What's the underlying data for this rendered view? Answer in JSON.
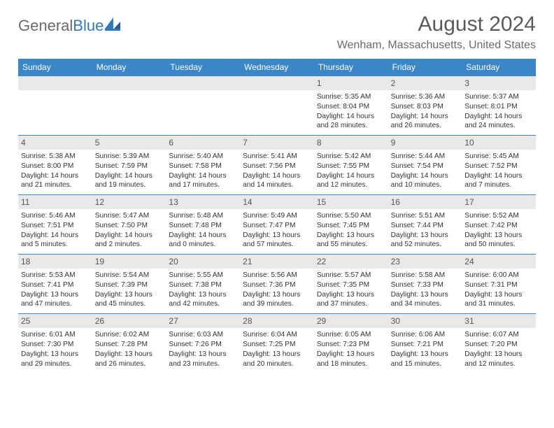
{
  "logo": {
    "part1": "General",
    "part2": "Blue"
  },
  "title": "August 2024",
  "location": "Wenham, Massachusetts, United States",
  "day_headers": [
    "Sunday",
    "Monday",
    "Tuesday",
    "Wednesday",
    "Thursday",
    "Friday",
    "Saturday"
  ],
  "colors": {
    "header_bg": "#3b86c6",
    "num_bg": "#e9e9e9",
    "rule": "#3b86c6",
    "logo_gray": "#6a6a6a",
    "logo_blue": "#2f7bbf"
  },
  "weeks": [
    [
      {
        "num": "",
        "empty": true,
        "sunrise": "",
        "sunset": "",
        "daylight1": "",
        "daylight2": ""
      },
      {
        "num": "",
        "empty": true,
        "sunrise": "",
        "sunset": "",
        "daylight1": "",
        "daylight2": ""
      },
      {
        "num": "",
        "empty": true,
        "sunrise": "",
        "sunset": "",
        "daylight1": "",
        "daylight2": ""
      },
      {
        "num": "",
        "empty": true,
        "sunrise": "",
        "sunset": "",
        "daylight1": "",
        "daylight2": ""
      },
      {
        "num": "1",
        "sunrise": "Sunrise: 5:35 AM",
        "sunset": "Sunset: 8:04 PM",
        "daylight1": "Daylight: 14 hours",
        "daylight2": "and 28 minutes."
      },
      {
        "num": "2",
        "sunrise": "Sunrise: 5:36 AM",
        "sunset": "Sunset: 8:03 PM",
        "daylight1": "Daylight: 14 hours",
        "daylight2": "and 26 minutes."
      },
      {
        "num": "3",
        "sunrise": "Sunrise: 5:37 AM",
        "sunset": "Sunset: 8:01 PM",
        "daylight1": "Daylight: 14 hours",
        "daylight2": "and 24 minutes."
      }
    ],
    [
      {
        "num": "4",
        "sunrise": "Sunrise: 5:38 AM",
        "sunset": "Sunset: 8:00 PM",
        "daylight1": "Daylight: 14 hours",
        "daylight2": "and 21 minutes."
      },
      {
        "num": "5",
        "sunrise": "Sunrise: 5:39 AM",
        "sunset": "Sunset: 7:59 PM",
        "daylight1": "Daylight: 14 hours",
        "daylight2": "and 19 minutes."
      },
      {
        "num": "6",
        "sunrise": "Sunrise: 5:40 AM",
        "sunset": "Sunset: 7:58 PM",
        "daylight1": "Daylight: 14 hours",
        "daylight2": "and 17 minutes."
      },
      {
        "num": "7",
        "sunrise": "Sunrise: 5:41 AM",
        "sunset": "Sunset: 7:56 PM",
        "daylight1": "Daylight: 14 hours",
        "daylight2": "and 14 minutes."
      },
      {
        "num": "8",
        "sunrise": "Sunrise: 5:42 AM",
        "sunset": "Sunset: 7:55 PM",
        "daylight1": "Daylight: 14 hours",
        "daylight2": "and 12 minutes."
      },
      {
        "num": "9",
        "sunrise": "Sunrise: 5:44 AM",
        "sunset": "Sunset: 7:54 PM",
        "daylight1": "Daylight: 14 hours",
        "daylight2": "and 10 minutes."
      },
      {
        "num": "10",
        "sunrise": "Sunrise: 5:45 AM",
        "sunset": "Sunset: 7:52 PM",
        "daylight1": "Daylight: 14 hours",
        "daylight2": "and 7 minutes."
      }
    ],
    [
      {
        "num": "11",
        "sunrise": "Sunrise: 5:46 AM",
        "sunset": "Sunset: 7:51 PM",
        "daylight1": "Daylight: 14 hours",
        "daylight2": "and 5 minutes."
      },
      {
        "num": "12",
        "sunrise": "Sunrise: 5:47 AM",
        "sunset": "Sunset: 7:50 PM",
        "daylight1": "Daylight: 14 hours",
        "daylight2": "and 2 minutes."
      },
      {
        "num": "13",
        "sunrise": "Sunrise: 5:48 AM",
        "sunset": "Sunset: 7:48 PM",
        "daylight1": "Daylight: 14 hours",
        "daylight2": "and 0 minutes."
      },
      {
        "num": "14",
        "sunrise": "Sunrise: 5:49 AM",
        "sunset": "Sunset: 7:47 PM",
        "daylight1": "Daylight: 13 hours",
        "daylight2": "and 57 minutes."
      },
      {
        "num": "15",
        "sunrise": "Sunrise: 5:50 AM",
        "sunset": "Sunset: 7:45 PM",
        "daylight1": "Daylight: 13 hours",
        "daylight2": "and 55 minutes."
      },
      {
        "num": "16",
        "sunrise": "Sunrise: 5:51 AM",
        "sunset": "Sunset: 7:44 PM",
        "daylight1": "Daylight: 13 hours",
        "daylight2": "and 52 minutes."
      },
      {
        "num": "17",
        "sunrise": "Sunrise: 5:52 AM",
        "sunset": "Sunset: 7:42 PM",
        "daylight1": "Daylight: 13 hours",
        "daylight2": "and 50 minutes."
      }
    ],
    [
      {
        "num": "18",
        "sunrise": "Sunrise: 5:53 AM",
        "sunset": "Sunset: 7:41 PM",
        "daylight1": "Daylight: 13 hours",
        "daylight2": "and 47 minutes."
      },
      {
        "num": "19",
        "sunrise": "Sunrise: 5:54 AM",
        "sunset": "Sunset: 7:39 PM",
        "daylight1": "Daylight: 13 hours",
        "daylight2": "and 45 minutes."
      },
      {
        "num": "20",
        "sunrise": "Sunrise: 5:55 AM",
        "sunset": "Sunset: 7:38 PM",
        "daylight1": "Daylight: 13 hours",
        "daylight2": "and 42 minutes."
      },
      {
        "num": "21",
        "sunrise": "Sunrise: 5:56 AM",
        "sunset": "Sunset: 7:36 PM",
        "daylight1": "Daylight: 13 hours",
        "daylight2": "and 39 minutes."
      },
      {
        "num": "22",
        "sunrise": "Sunrise: 5:57 AM",
        "sunset": "Sunset: 7:35 PM",
        "daylight1": "Daylight: 13 hours",
        "daylight2": "and 37 minutes."
      },
      {
        "num": "23",
        "sunrise": "Sunrise: 5:58 AM",
        "sunset": "Sunset: 7:33 PM",
        "daylight1": "Daylight: 13 hours",
        "daylight2": "and 34 minutes."
      },
      {
        "num": "24",
        "sunrise": "Sunrise: 6:00 AM",
        "sunset": "Sunset: 7:31 PM",
        "daylight1": "Daylight: 13 hours",
        "daylight2": "and 31 minutes."
      }
    ],
    [
      {
        "num": "25",
        "sunrise": "Sunrise: 6:01 AM",
        "sunset": "Sunset: 7:30 PM",
        "daylight1": "Daylight: 13 hours",
        "daylight2": "and 29 minutes."
      },
      {
        "num": "26",
        "sunrise": "Sunrise: 6:02 AM",
        "sunset": "Sunset: 7:28 PM",
        "daylight1": "Daylight: 13 hours",
        "daylight2": "and 26 minutes."
      },
      {
        "num": "27",
        "sunrise": "Sunrise: 6:03 AM",
        "sunset": "Sunset: 7:26 PM",
        "daylight1": "Daylight: 13 hours",
        "daylight2": "and 23 minutes."
      },
      {
        "num": "28",
        "sunrise": "Sunrise: 6:04 AM",
        "sunset": "Sunset: 7:25 PM",
        "daylight1": "Daylight: 13 hours",
        "daylight2": "and 20 minutes."
      },
      {
        "num": "29",
        "sunrise": "Sunrise: 6:05 AM",
        "sunset": "Sunset: 7:23 PM",
        "daylight1": "Daylight: 13 hours",
        "daylight2": "and 18 minutes."
      },
      {
        "num": "30",
        "sunrise": "Sunrise: 6:06 AM",
        "sunset": "Sunset: 7:21 PM",
        "daylight1": "Daylight: 13 hours",
        "daylight2": "and 15 minutes."
      },
      {
        "num": "31",
        "sunrise": "Sunrise: 6:07 AM",
        "sunset": "Sunset: 7:20 PM",
        "daylight1": "Daylight: 13 hours",
        "daylight2": "and 12 minutes."
      }
    ]
  ]
}
